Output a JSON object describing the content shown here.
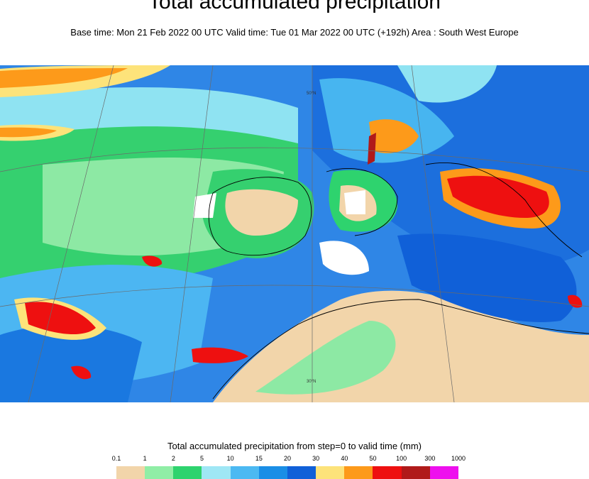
{
  "header": {
    "title": "Total accumulated precipitation",
    "subtitle": "Base time: Mon 21 Feb 2022 00 UTC Valid time: Tue 01 Mar 2022 00 UTC (+192h) Area : South West Europe"
  },
  "map": {
    "graticule_labels": [
      "50°N",
      "30°N"
    ],
    "palette": {
      "sea_base": "#3b8ee8",
      "land_dry": "#f2d5aa"
    }
  },
  "legend": {
    "title": "Total accumulated precipitation from step=0 to valid time (mm)",
    "ticks": [
      "0.1",
      "1",
      "2",
      "5",
      "10",
      "15",
      "20",
      "30",
      "40",
      "50",
      "100",
      "300",
      "1000"
    ],
    "colors": [
      "#f2d5aa",
      "#90eea6",
      "#2ed36e",
      "#9fe7f5",
      "#4cb9f2",
      "#1a8ee6",
      "#1060d8",
      "#fde37a",
      "#fd9a1a",
      "#ee1010",
      "#b01a1a",
      "#ee10ee"
    ]
  }
}
